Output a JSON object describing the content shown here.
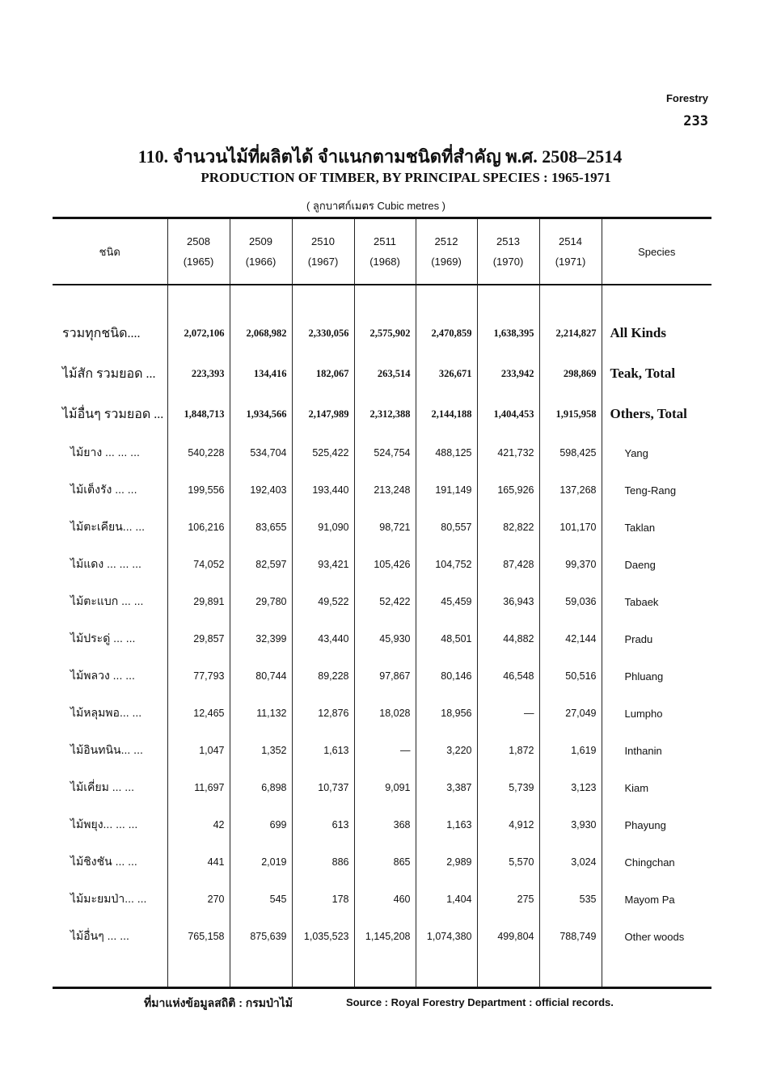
{
  "header": {
    "section": "Forestry",
    "page_number": "233"
  },
  "title": {
    "thai": "110. จำนวนไม้ที่ผลิตได้  จำแนกตามชนิดที่สำคัญ  พ.ศ. 2508–2514",
    "english": "PRODUCTION OF TIMBER, BY PRINCIPAL SPECIES : 1965-1971",
    "unit": "( ลูกบาศก์เมตร Cubic metres )"
  },
  "table": {
    "col_thai": "ชนิด",
    "col_species": "Species",
    "years": [
      {
        "be": "2508",
        "ce": "(1965)"
      },
      {
        "be": "2509",
        "ce": "(1966)"
      },
      {
        "be": "2510",
        "ce": "(1967)"
      },
      {
        "be": "2511",
        "ce": "(1968)"
      },
      {
        "be": "2512",
        "ce": "(1969)"
      },
      {
        "be": "2513",
        "ce": "(1970)"
      },
      {
        "be": "2514",
        "ce": "(1971)"
      }
    ],
    "rows": [
      {
        "thai": "รวมทุกชนิด....",
        "species": "All Kinds",
        "total": true,
        "values": [
          "2,072,106",
          "2,068,982",
          "2,330,056",
          "2,575,902",
          "2,470,859",
          "1,638,395",
          "2,214,827"
        ]
      },
      {
        "thai": "ไม้สัก รวมยอด ...",
        "species": "Teak, Total",
        "total": true,
        "values": [
          "223,393",
          "134,416",
          "182,067",
          "263,514",
          "326,671",
          "233,942",
          "298,869"
        ]
      },
      {
        "thai": "ไม้อื่นๆ รวมยอด ...",
        "species": "Others, Total",
        "total": true,
        "values": [
          "1,848,713",
          "1,934,566",
          "2,147,989",
          "2,312,388",
          "2,144,188",
          "1,404,453",
          "1,915,958"
        ]
      },
      {
        "thai": "ไม้ยาง ... ... ...",
        "species": "Yang",
        "values": [
          "540,228",
          "534,704",
          "525,422",
          "524,754",
          "488,125",
          "421,732",
          "598,425"
        ]
      },
      {
        "thai": "ไม้เต็งรัง ... ...",
        "species": "Teng-Rang",
        "values": [
          "199,556",
          "192,403",
          "193,440",
          "213,248",
          "191,149",
          "165,926",
          "137,268"
        ]
      },
      {
        "thai": "ไม้ตะเคียน... ...",
        "species": "Taklan",
        "values": [
          "106,216",
          "83,655",
          "91,090",
          "98,721",
          "80,557",
          "82,822",
          "101,170"
        ]
      },
      {
        "thai": "ไม้แดง ... ... ...",
        "species": "Daeng",
        "values": [
          "74,052",
          "82,597",
          "93,421",
          "105,426",
          "104,752",
          "87,428",
          "99,370"
        ]
      },
      {
        "thai": "ไม้ตะแบก ... ...",
        "species": "Tabaek",
        "values": [
          "29,891",
          "29,780",
          "49,522",
          "52,422",
          "45,459",
          "36,943",
          "59,036"
        ]
      },
      {
        "thai": "ไม้ประดู่ ... ...",
        "species": "Pradu",
        "values": [
          "29,857",
          "32,399",
          "43,440",
          "45,930",
          "48,501",
          "44,882",
          "42,144"
        ]
      },
      {
        "thai": "ไม้พลวง ... ...",
        "species": "Phluang",
        "values": [
          "77,793",
          "80,744",
          "89,228",
          "97,867",
          "80,146",
          "46,548",
          "50,516"
        ]
      },
      {
        "thai": "ไม้หลุมพอ... ...",
        "species": "Lumpho",
        "values": [
          "12,465",
          "11,132",
          "12,876",
          "18,028",
          "18,956",
          "—",
          "27,049"
        ]
      },
      {
        "thai": "ไม้อินทนิน... ...",
        "species": "Inthanin",
        "values": [
          "1,047",
          "1,352",
          "1,613",
          "—",
          "3,220",
          "1,872",
          "1,619"
        ]
      },
      {
        "thai": "ไม้เคี่ยม ... ...",
        "species": "Kiam",
        "values": [
          "11,697",
          "6,898",
          "10,737",
          "9,091",
          "3,387",
          "5,739",
          "3,123"
        ]
      },
      {
        "thai": "ไม้พยุง... ... ...",
        "species": "Phayung",
        "values": [
          "42",
          "699",
          "613",
          "368",
          "1,163",
          "4,912",
          "3,930"
        ]
      },
      {
        "thai": "ไม้ชิงชัน ... ...",
        "species": "Chingchan",
        "values": [
          "441",
          "2,019",
          "886",
          "865",
          "2,989",
          "5,570",
          "3,024"
        ]
      },
      {
        "thai": "ไม้มะยมป่า... ...",
        "species": "Mayom Pa",
        "values": [
          "270",
          "545",
          "178",
          "460",
          "1,404",
          "275",
          "535"
        ]
      },
      {
        "thai": "ไม้อื่นๆ ... ...",
        "species": "Other woods",
        "values": [
          "765,158",
          "875,639",
          "1,035,523",
          "1,145,208",
          "1,074,380",
          "499,804",
          "788,749"
        ]
      }
    ]
  },
  "footer": {
    "source_thai": "ที่มาแห่งข้อมูลสถิติ : กรมป่าไม้",
    "source_english": "Source : Royal Forestry Department : official records."
  }
}
